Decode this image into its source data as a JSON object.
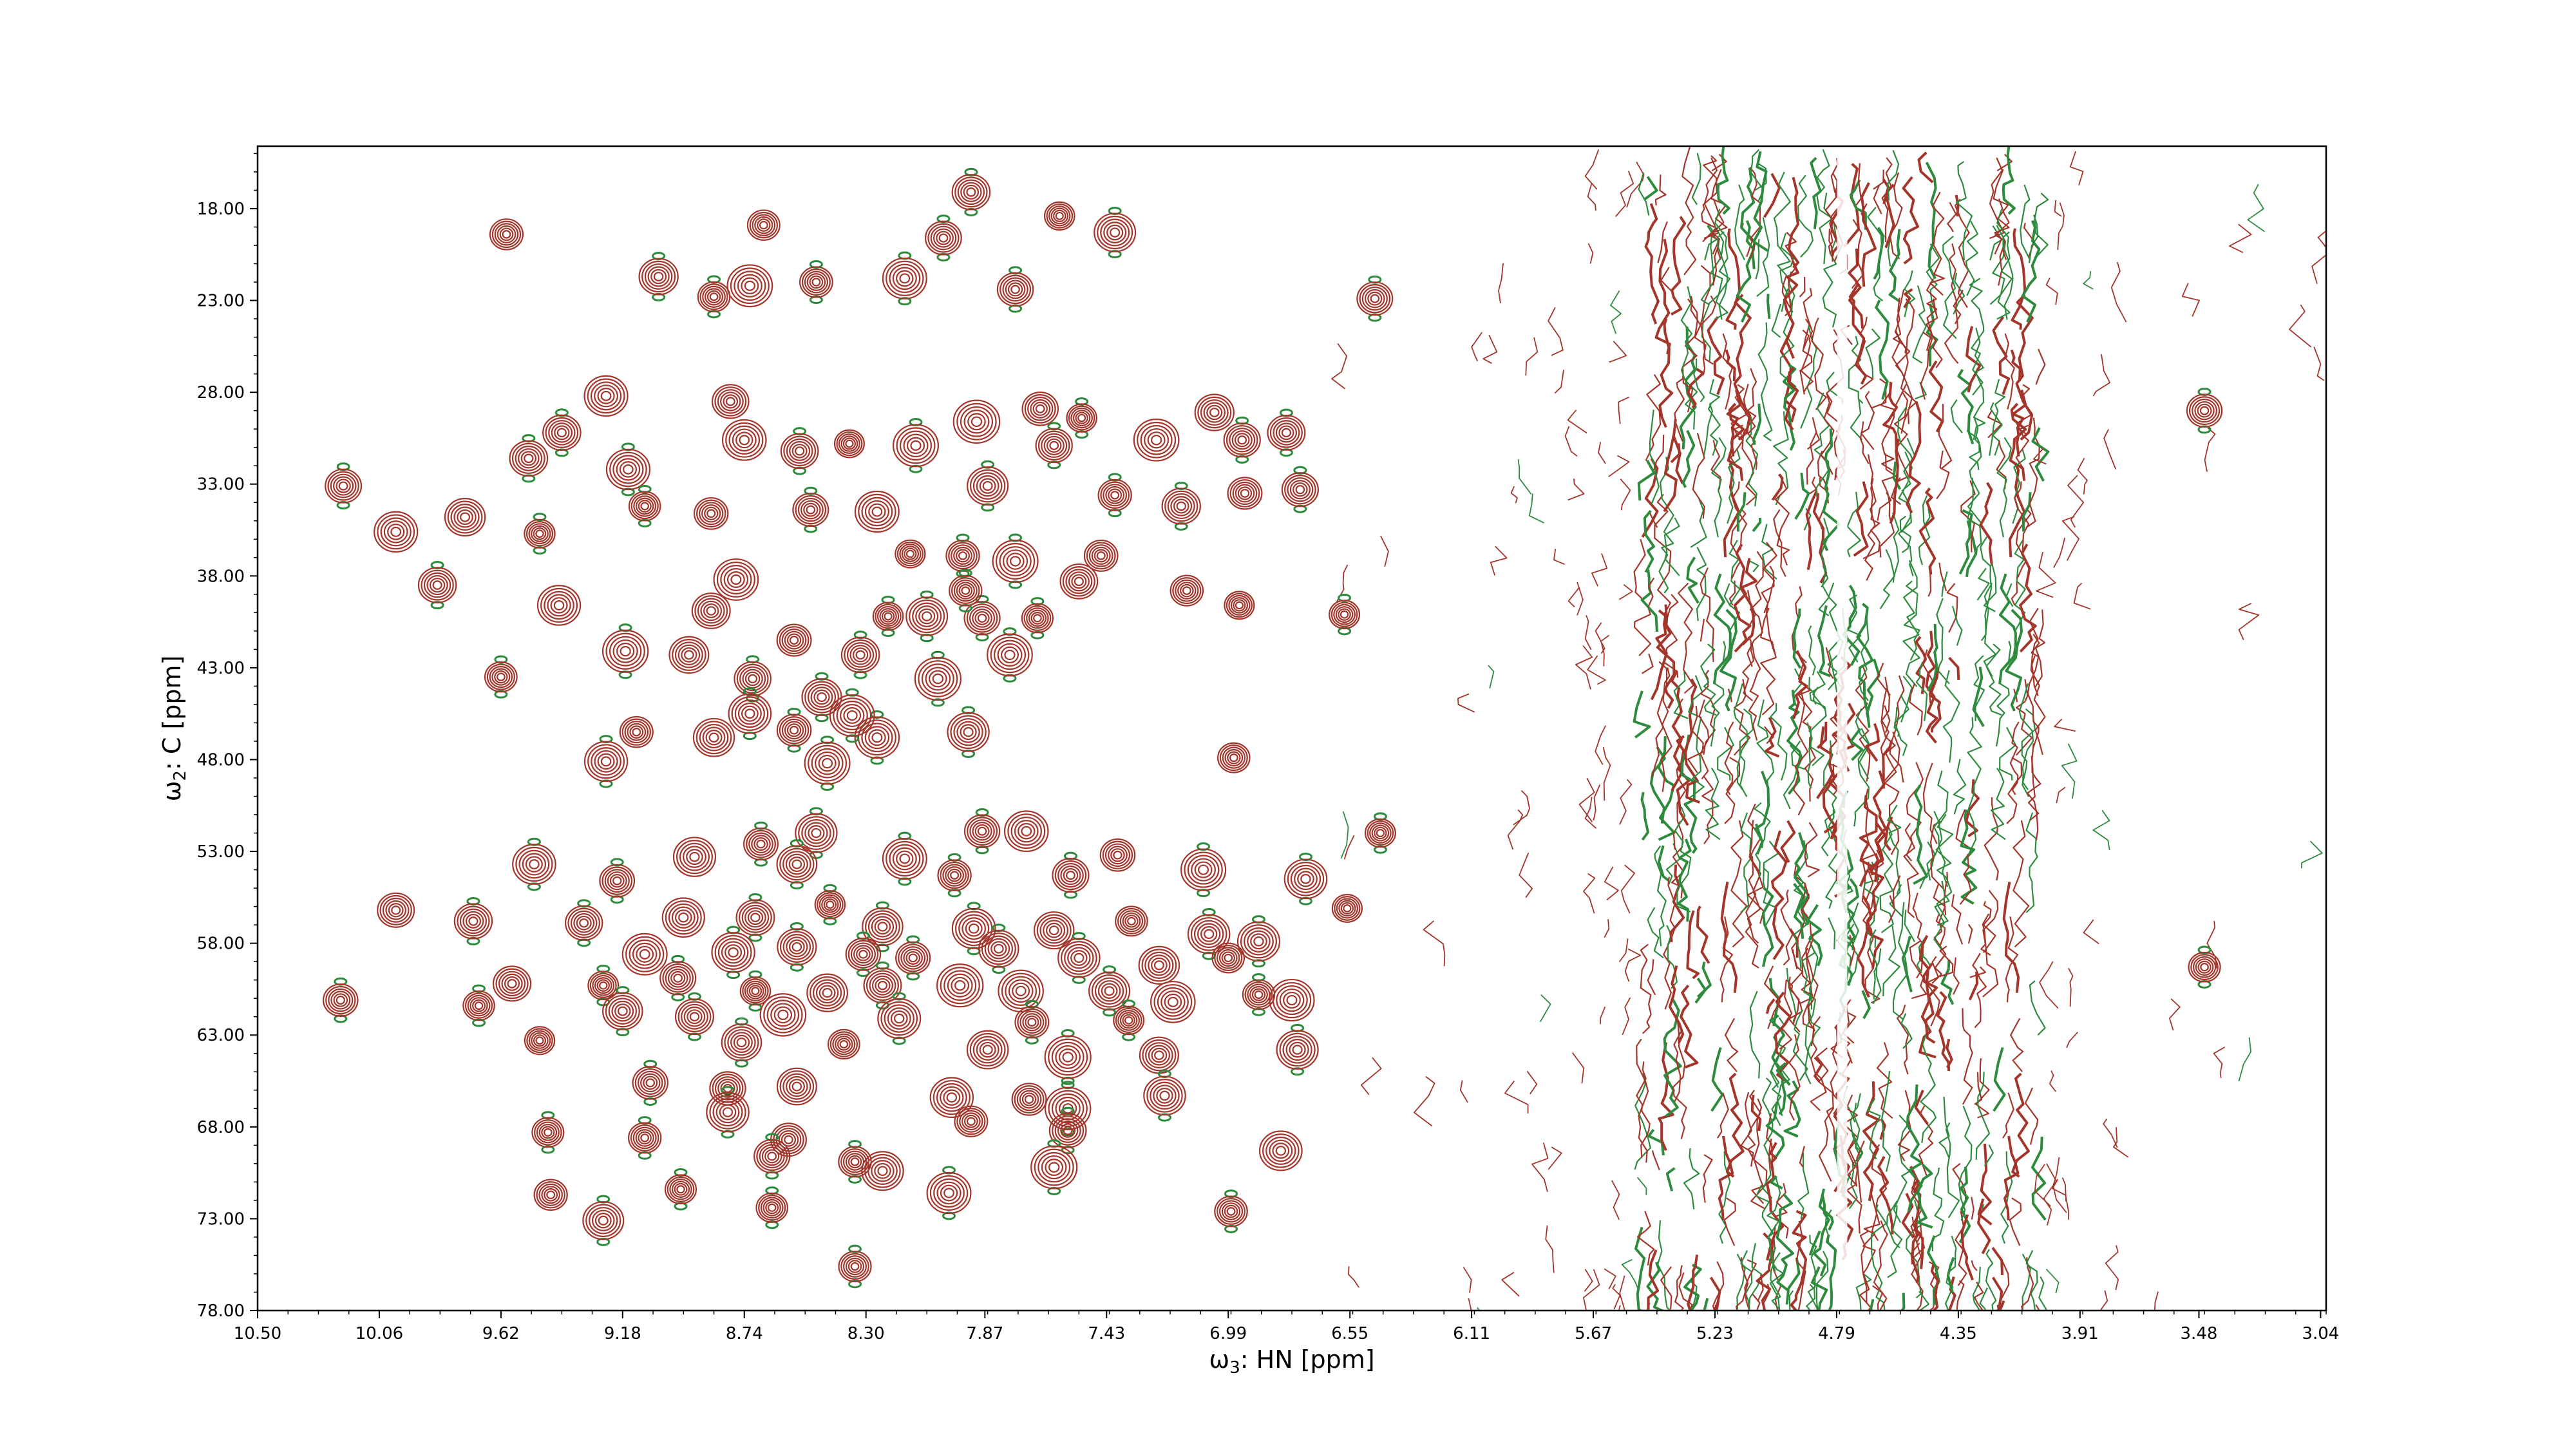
{
  "chart_data": {
    "type": "contour",
    "title": "",
    "xlabel": "ω3: HN [ppm]",
    "xlabel_parts": {
      "symbol": "ω",
      "sub": "3",
      "rest": ": HN [ppm]"
    },
    "ylabel": "ω2: C [ppm]",
    "ylabel_parts": {
      "symbol": "ω",
      "sub": "2",
      "rest": ": C [ppm]"
    },
    "x_reversed": true,
    "y_reversed": true,
    "xlim": [
      10.5,
      3.02
    ],
    "ylim": [
      14.6,
      78.0
    ],
    "x_ticks": [
      "10.50",
      "10.06",
      "9.62",
      "9.18",
      "8.74",
      "8.30",
      "7.87",
      "7.43",
      "6.99",
      "6.55",
      "6.11",
      "5.67",
      "5.23",
      "4.79",
      "4.35",
      "3.91",
      "3.48",
      "3.04"
    ],
    "y_ticks": [
      "18.00",
      "23.00",
      "28.00",
      "33.00",
      "38.00",
      "43.00",
      "48.00",
      "53.00",
      "58.00",
      "63.00",
      "68.00",
      "73.00",
      "78.00"
    ],
    "grid": false,
    "colors": {
      "positive": "#a3352a",
      "negative": "#2e8b3e"
    },
    "peaks": [
      [
        9.6,
        19.4
      ],
      [
        8.67,
        18.9
      ],
      [
        7.92,
        17.1
      ],
      [
        7.6,
        18.4
      ],
      [
        7.4,
        19.3
      ],
      [
        8.02,
        19.6
      ],
      [
        9.05,
        21.7
      ],
      [
        8.85,
        22.8
      ],
      [
        8.72,
        22.2
      ],
      [
        8.48,
        22.0
      ],
      [
        8.16,
        21.8
      ],
      [
        7.76,
        22.4
      ],
      [
        6.46,
        22.9
      ],
      [
        3.46,
        29.0
      ],
      [
        10.19,
        33.1
      ],
      [
        9.4,
        30.2
      ],
      [
        9.16,
        32.2
      ],
      [
        8.74,
        30.6
      ],
      [
        8.54,
        31.2
      ],
      [
        8.36,
        30.8
      ],
      [
        8.12,
        30.9
      ],
      [
        7.9,
        29.6
      ],
      [
        7.62,
        30.9
      ],
      [
        7.52,
        29.4
      ],
      [
        7.25,
        30.6
      ],
      [
        7.04,
        29.1
      ],
      [
        6.94,
        30.6
      ],
      [
        6.78,
        30.2
      ],
      [
        7.67,
        28.9
      ],
      [
        8.79,
        28.5
      ],
      [
        9.24,
        28.2
      ],
      [
        9.52,
        31.6
      ],
      [
        9.75,
        34.8
      ],
      [
        10.0,
        35.6
      ],
      [
        9.48,
        35.7
      ],
      [
        9.1,
        34.2
      ],
      [
        8.86,
        34.6
      ],
      [
        8.5,
        34.4
      ],
      [
        8.26,
        34.5
      ],
      [
        7.86,
        33.1
      ],
      [
        7.4,
        33.6
      ],
      [
        7.16,
        34.2
      ],
      [
        6.93,
        33.5
      ],
      [
        6.73,
        33.3
      ],
      [
        8.14,
        36.8
      ],
      [
        7.95,
        36.9
      ],
      [
        7.45,
        36.9
      ],
      [
        7.76,
        37.2
      ],
      [
        7.53,
        38.3
      ],
      [
        7.14,
        38.8
      ],
      [
        6.95,
        39.6
      ],
      [
        6.57,
        40.1
      ],
      [
        8.77,
        38.2
      ],
      [
        8.86,
        39.9
      ],
      [
        9.41,
        39.6
      ],
      [
        9.85,
        38.5
      ],
      [
        8.22,
        40.2
      ],
      [
        8.08,
        40.2
      ],
      [
        7.88,
        40.3
      ],
      [
        7.68,
        40.3
      ],
      [
        7.94,
        38.8
      ],
      [
        8.56,
        41.5
      ],
      [
        8.32,
        42.3
      ],
      [
        7.78,
        42.3
      ],
      [
        9.17,
        42.1
      ],
      [
        8.94,
        42.3
      ],
      [
        9.62,
        43.5
      ],
      [
        8.71,
        43.6
      ],
      [
        8.46,
        44.6
      ],
      [
        8.04,
        43.6
      ],
      [
        9.13,
        46.5
      ],
      [
        8.85,
        46.8
      ],
      [
        8.72,
        45.5
      ],
      [
        8.26,
        46.8
      ],
      [
        8.35,
        45.6
      ],
      [
        7.93,
        46.5
      ],
      [
        8.56,
        46.4
      ],
      [
        8.44,
        48.2
      ],
      [
        6.97,
        47.9
      ],
      [
        9.24,
        48.1
      ],
      [
        6.44,
        52.0
      ],
      [
        8.68,
        52.6
      ],
      [
        8.48,
        52.0
      ],
      [
        7.88,
        51.9
      ],
      [
        7.72,
        51.9
      ],
      [
        7.39,
        53.2
      ],
      [
        9.5,
        53.7
      ],
      [
        9.2,
        54.6
      ],
      [
        8.92,
        53.3
      ],
      [
        8.55,
        53.7
      ],
      [
        8.16,
        53.4
      ],
      [
        7.98,
        54.3
      ],
      [
        7.56,
        54.3
      ],
      [
        7.08,
        54.0
      ],
      [
        6.71,
        54.5
      ],
      [
        10.0,
        56.2
      ],
      [
        6.56,
        56.1
      ],
      [
        9.72,
        56.8
      ],
      [
        9.32,
        56.9
      ],
      [
        8.96,
        56.6
      ],
      [
        8.7,
        56.6
      ],
      [
        8.43,
        55.9
      ],
      [
        8.24,
        57.1
      ],
      [
        7.91,
        57.2
      ],
      [
        7.62,
        57.3
      ],
      [
        7.34,
        56.8
      ],
      [
        7.06,
        57.5
      ],
      [
        6.88,
        57.9
      ],
      [
        9.1,
        58.6
      ],
      [
        8.78,
        58.5
      ],
      [
        8.55,
        58.2
      ],
      [
        8.31,
        58.6
      ],
      [
        8.13,
        58.8
      ],
      [
        7.82,
        58.3
      ],
      [
        7.53,
        58.8
      ],
      [
        7.24,
        59.2
      ],
      [
        6.99,
        58.8
      ],
      [
        3.46,
        59.3
      ],
      [
        9.58,
        60.2
      ],
      [
        9.25,
        60.3
      ],
      [
        8.98,
        59.9
      ],
      [
        8.7,
        60.6
      ],
      [
        8.44,
        60.7
      ],
      [
        8.24,
        60.3
      ],
      [
        7.96,
        60.3
      ],
      [
        7.74,
        60.6
      ],
      [
        7.42,
        60.6
      ],
      [
        7.19,
        61.2
      ],
      [
        6.88,
        60.8
      ],
      [
        6.76,
        61.1
      ],
      [
        10.2,
        61.1
      ],
      [
        9.7,
        61.4
      ],
      [
        9.18,
        61.7
      ],
      [
        8.92,
        62.0
      ],
      [
        8.6,
        61.9
      ],
      [
        8.18,
        62.1
      ],
      [
        7.7,
        62.3
      ],
      [
        7.35,
        62.2
      ],
      [
        9.48,
        63.3
      ],
      [
        8.75,
        63.4
      ],
      [
        8.38,
        63.5
      ],
      [
        7.86,
        63.8
      ],
      [
        7.57,
        64.2
      ],
      [
        7.24,
        64.1
      ],
      [
        6.74,
        63.8
      ],
      [
        9.08,
        65.6
      ],
      [
        8.8,
        65.9
      ],
      [
        8.55,
        65.8
      ],
      [
        7.99,
        66.4
      ],
      [
        7.71,
        66.5
      ],
      [
        7.57,
        67.0
      ],
      [
        7.22,
        66.3
      ],
      [
        9.45,
        68.3
      ],
      [
        9.1,
        68.6
      ],
      [
        8.8,
        67.2
      ],
      [
        8.58,
        68.7
      ],
      [
        7.92,
        67.7
      ],
      [
        7.57,
        68.2
      ],
      [
        6.8,
        69.3
      ],
      [
        9.44,
        71.7
      ],
      [
        8.97,
        71.4
      ],
      [
        8.24,
        70.4
      ],
      [
        8.0,
        71.6
      ],
      [
        8.34,
        69.9
      ],
      [
        8.64,
        69.6
      ],
      [
        7.62,
        70.2
      ],
      [
        9.25,
        73.1
      ],
      [
        8.64,
        72.4
      ],
      [
        8.34,
        75.6
      ],
      [
        6.98,
        72.6
      ]
    ]
  }
}
